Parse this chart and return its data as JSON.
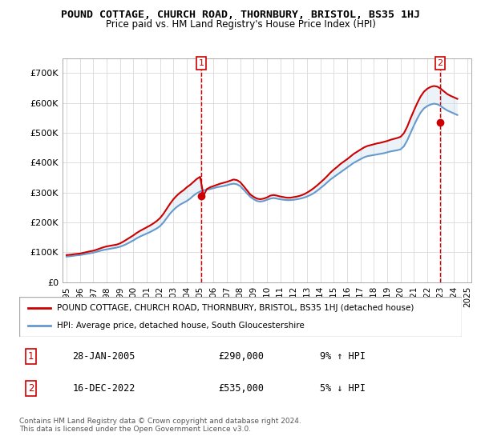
{
  "title": "POUND COTTAGE, CHURCH ROAD, THORNBURY, BRISTOL, BS35 1HJ",
  "subtitle": "Price paid vs. HM Land Registry's House Price Index (HPI)",
  "legend_line1": "POUND COTTAGE, CHURCH ROAD, THORNBURY, BRISTOL, BS35 1HJ (detached house)",
  "legend_line2": "HPI: Average price, detached house, South Gloucestershire",
  "annotation1": {
    "num": "1",
    "date": "28-JAN-2005",
    "price": "£290,000",
    "hpi": "9% ↑ HPI"
  },
  "annotation2": {
    "num": "2",
    "date": "16-DEC-2022",
    "price": "£535,000",
    "hpi": "5% ↓ HPI"
  },
  "footnote": "Contains HM Land Registry data © Crown copyright and database right 2024.\nThis data is licensed under the Open Government Licence v3.0.",
  "property_color": "#cc0000",
  "hpi_color": "#6699cc",
  "hpi_fill_color": "#c8ddf0",
  "background_color": "#ffffff",
  "grid_color": "#dddddd",
  "ylim": [
    0,
    750000
  ],
  "yticks": [
    0,
    100000,
    200000,
    300000,
    400000,
    500000,
    600000,
    700000
  ],
  "ytick_labels": [
    "£0",
    "£100K",
    "£200K",
    "£300K",
    "£400K",
    "£500K",
    "£600K",
    "£700K"
  ],
  "sale1_x": 2005.08,
  "sale1_y": 290000,
  "sale2_x": 2022.96,
  "sale2_y": 535000,
  "vline1_x": 2005.08,
  "vline2_x": 2022.96,
  "years": [
    1995.0,
    1995.25,
    1995.5,
    1995.75,
    1996.0,
    1996.25,
    1996.5,
    1996.75,
    1997.0,
    1997.25,
    1997.5,
    1997.75,
    1998.0,
    1998.25,
    1998.5,
    1998.75,
    1999.0,
    1999.25,
    1999.5,
    1999.75,
    2000.0,
    2000.25,
    2000.5,
    2000.75,
    2001.0,
    2001.25,
    2001.5,
    2001.75,
    2002.0,
    2002.25,
    2002.5,
    2002.75,
    2003.0,
    2003.25,
    2003.5,
    2003.75,
    2004.0,
    2004.25,
    2004.5,
    2004.75,
    2005.0,
    2005.25,
    2005.5,
    2005.75,
    2006.0,
    2006.25,
    2006.5,
    2006.75,
    2007.0,
    2007.25,
    2007.5,
    2007.75,
    2008.0,
    2008.25,
    2008.5,
    2008.75,
    2009.0,
    2009.25,
    2009.5,
    2009.75,
    2010.0,
    2010.25,
    2010.5,
    2010.75,
    2011.0,
    2011.25,
    2011.5,
    2011.75,
    2012.0,
    2012.25,
    2012.5,
    2012.75,
    2013.0,
    2013.25,
    2013.5,
    2013.75,
    2014.0,
    2014.25,
    2014.5,
    2014.75,
    2015.0,
    2015.25,
    2015.5,
    2015.75,
    2016.0,
    2016.25,
    2016.5,
    2016.75,
    2017.0,
    2017.25,
    2017.5,
    2017.75,
    2018.0,
    2018.25,
    2018.5,
    2018.75,
    2019.0,
    2019.25,
    2019.5,
    2019.75,
    2020.0,
    2020.25,
    2020.5,
    2020.75,
    2021.0,
    2021.25,
    2021.5,
    2021.75,
    2022.0,
    2022.25,
    2022.5,
    2022.75,
    2023.0,
    2023.25,
    2023.5,
    2023.75,
    2024.0,
    2024.25
  ],
  "hpi_values": [
    86000,
    87000,
    88500,
    90000,
    91000,
    93000,
    95000,
    97000,
    99000,
    102000,
    105000,
    108000,
    110000,
    112000,
    114000,
    116000,
    119000,
    123000,
    128000,
    134000,
    140000,
    147000,
    153000,
    158000,
    163000,
    168000,
    174000,
    180000,
    188000,
    200000,
    215000,
    230000,
    242000,
    252000,
    260000,
    266000,
    272000,
    280000,
    290000,
    298000,
    304000,
    308000,
    310000,
    312000,
    315000,
    318000,
    320000,
    322000,
    325000,
    328000,
    330000,
    328000,
    322000,
    310000,
    298000,
    286000,
    278000,
    272000,
    270000,
    272000,
    276000,
    280000,
    282000,
    280000,
    278000,
    276000,
    275000,
    275000,
    276000,
    278000,
    280000,
    283000,
    287000,
    292000,
    298000,
    306000,
    315000,
    324000,
    334000,
    344000,
    352000,
    360000,
    368000,
    376000,
    384000,
    392000,
    400000,
    406000,
    412000,
    418000,
    422000,
    424000,
    426000,
    428000,
    430000,
    432000,
    435000,
    438000,
    440000,
    442000,
    445000,
    455000,
    475000,
    500000,
    525000,
    548000,
    568000,
    582000,
    590000,
    595000,
    598000,
    596000,
    590000,
    582000,
    575000,
    570000,
    565000,
    560000
  ],
  "prop_values": [
    91000,
    92000,
    93500,
    95000,
    96000,
    98500,
    101000,
    103500,
    105500,
    109000,
    113000,
    117000,
    120000,
    122000,
    124000,
    126000,
    130000,
    136000,
    143000,
    150000,
    157000,
    165000,
    172000,
    178000,
    184000,
    190000,
    197000,
    205000,
    215000,
    229000,
    246000,
    263000,
    278000,
    290000,
    300000,
    308000,
    318000,
    326000,
    336000,
    346000,
    353000,
    290000,
    312000,
    318000,
    322000,
    326000,
    330000,
    333000,
    336000,
    340000,
    344000,
    342000,
    335000,
    322000,
    308000,
    294000,
    286000,
    280000,
    278000,
    280000,
    284000,
    290000,
    292000,
    290000,
    287000,
    285000,
    283000,
    283000,
    285000,
    287000,
    290000,
    294000,
    300000,
    307000,
    315000,
    324000,
    334000,
    344000,
    355000,
    367000,
    377000,
    386000,
    396000,
    404000,
    412000,
    421000,
    430000,
    437000,
    444000,
    451000,
    456000,
    459000,
    462000,
    465000,
    467000,
    470000,
    473000,
    477000,
    480000,
    483000,
    487000,
    499000,
    521000,
    549000,
    575000,
    600000,
    622000,
    638000,
    648000,
    654000,
    657000,
    655000,
    648000,
    639000,
    630000,
    624000,
    619000,
    614000
  ],
  "xtick_years": [
    1995,
    1996,
    1997,
    1998,
    1999,
    2000,
    2001,
    2002,
    2003,
    2004,
    2005,
    2006,
    2007,
    2008,
    2009,
    2010,
    2011,
    2012,
    2013,
    2014,
    2015,
    2016,
    2017,
    2018,
    2019,
    2020,
    2021,
    2022,
    2023,
    2024,
    2025
  ]
}
